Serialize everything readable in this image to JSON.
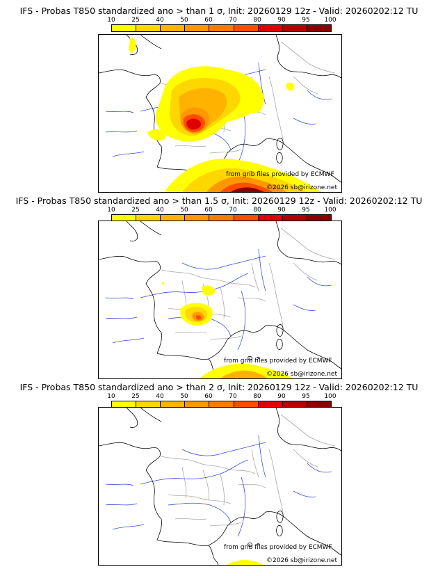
{
  "legend": {
    "ticks": [
      "10",
      "25",
      "40",
      "50",
      "60",
      "70",
      "80",
      "90",
      "95",
      "100"
    ],
    "colors": [
      "#ffff00",
      "#ffd700",
      "#ffb300",
      "#ff9800",
      "#ff7a00",
      "#ff4d00",
      "#e00000",
      "#b50000",
      "#8a0000",
      "#5a0000"
    ]
  },
  "panels": [
    {
      "title": "IFS - Probas T850  standardized ano > than 1 σ, Init: 20260129 12z - Valid: 20260202:12 TU"
    },
    {
      "title": "IFS - Probas T850  standardized ano > than 1.5 σ, Init: 20260129 12z - Valid: 20260202:12 TU"
    },
    {
      "title": "IFS - Probas T850  standardized ano > than 2 σ, Init: 20260129 12z - Valid: 20260202:12 TU"
    }
  ],
  "credits": {
    "source": "from grib files provided by ECMWF",
    "copyright": "©2026 sb@irizone.net"
  }
}
